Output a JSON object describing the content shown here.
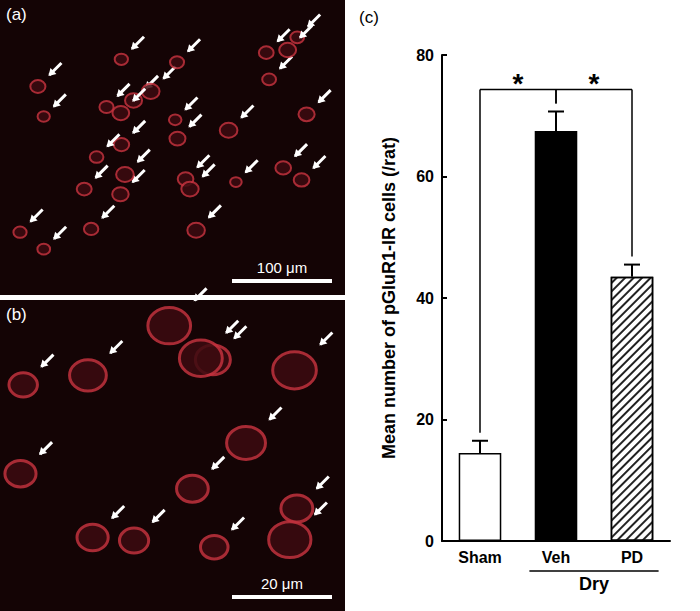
{
  "panels": [
    {
      "label": "(a)",
      "scale_bar": "100 μm"
    },
    {
      "label": "(b)",
      "scale_bar": "20 μm"
    }
  ],
  "chart_data": {
    "type": "bar",
    "title": "(c)",
    "categories": [
      "Sham",
      "Veh",
      "PD"
    ],
    "values": [
      14.5,
      67.5,
      43.5
    ],
    "errors": [
      2,
      3.2,
      2
    ],
    "colors": [
      "#ffffff",
      "#000000",
      "#ffffff"
    ],
    "ylabel": "Mean number of pGluR1-IR cells (/rat)",
    "ylim": [
      0,
      80
    ],
    "yticks": [
      0,
      20,
      40,
      60,
      80
    ],
    "grid": false,
    "group_label": {
      "text": "Dry",
      "categories": [
        "Veh",
        "PD"
      ]
    },
    "annotations": [
      {
        "text": "*",
        "between": [
          "Sham",
          "Veh"
        ]
      },
      {
        "text": "*",
        "between": [
          "Veh",
          "PD"
        ]
      }
    ]
  }
}
